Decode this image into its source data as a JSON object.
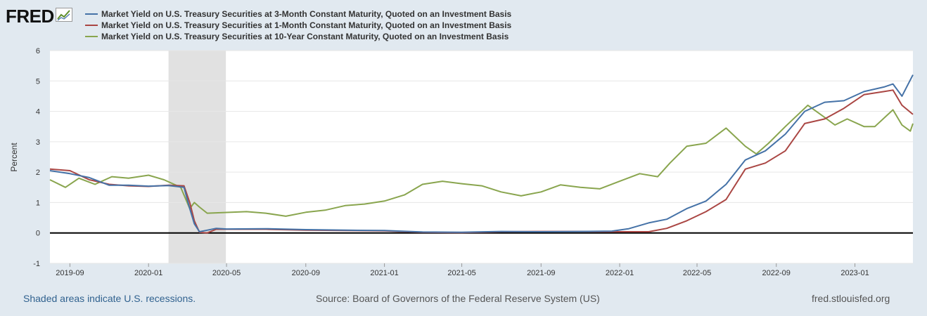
{
  "header": {
    "logo_text": "FRED",
    "logo_icon": "line-chart-icon"
  },
  "colors": {
    "series_3m": "#4572a7",
    "series_1m": "#aa4643",
    "series_10y": "#89a54e",
    "recession_shade": "#e1e1e1",
    "background": "#e1e9f0"
  },
  "footer": {
    "recession_note": "Shaded areas indicate U.S. recessions.",
    "source": "Source: Board of Governors of the Federal Reserve System (US)",
    "site": "fred.stlouisfed.org"
  },
  "chart_data": {
    "type": "line",
    "title": "",
    "xlabel": "",
    "ylabel": "Percent",
    "ylim": [
      -1,
      6
    ],
    "yticks": [
      -1,
      0,
      1,
      2,
      3,
      4,
      5,
      6
    ],
    "xlim": [
      "2019-08-01",
      "2023-04-01"
    ],
    "xticks": [
      "2019-09",
      "2020-01",
      "2020-05",
      "2020-09",
      "2021-01",
      "2021-05",
      "2021-09",
      "2022-01",
      "2022-05",
      "2022-09",
      "2023-01"
    ],
    "grid": true,
    "legend_position": "top",
    "recessions": [
      {
        "start": "2020-02-01",
        "end": "2020-04-30"
      }
    ],
    "series": [
      {
        "name": "Market Yield on U.S. Treasury Securities at 3-Month Constant Maturity, Quoted on an Investment Basis",
        "points": [
          [
            "2019-08-01",
            2.05
          ],
          [
            "2019-09-01",
            1.95
          ],
          [
            "2019-10-01",
            1.82
          ],
          [
            "2019-11-01",
            1.57
          ],
          [
            "2019-12-01",
            1.57
          ],
          [
            "2020-01-01",
            1.54
          ],
          [
            "2020-02-01",
            1.56
          ],
          [
            "2020-02-25",
            1.5
          ],
          [
            "2020-03-05",
            0.8
          ],
          [
            "2020-03-12",
            0.3
          ],
          [
            "2020-03-20",
            0.04
          ],
          [
            "2020-04-01",
            0.09
          ],
          [
            "2020-04-15",
            0.15
          ],
          [
            "2020-05-01",
            0.13
          ],
          [
            "2020-07-01",
            0.14
          ],
          [
            "2020-09-01",
            0.11
          ],
          [
            "2020-11-01",
            0.09
          ],
          [
            "2021-01-01",
            0.08
          ],
          [
            "2021-03-01",
            0.03
          ],
          [
            "2021-05-01",
            0.02
          ],
          [
            "2021-07-01",
            0.05
          ],
          [
            "2021-09-01",
            0.04
          ],
          [
            "2021-11-01",
            0.05
          ],
          [
            "2021-12-20",
            0.06
          ],
          [
            "2022-01-15",
            0.14
          ],
          [
            "2022-02-15",
            0.33
          ],
          [
            "2022-03-15",
            0.45
          ],
          [
            "2022-04-15",
            0.8
          ],
          [
            "2022-05-15",
            1.05
          ],
          [
            "2022-06-15",
            1.6
          ],
          [
            "2022-07-15",
            2.4
          ],
          [
            "2022-08-15",
            2.7
          ],
          [
            "2022-09-15",
            3.25
          ],
          [
            "2022-10-15",
            4.0
          ],
          [
            "2022-11-15",
            4.3
          ],
          [
            "2022-12-15",
            4.35
          ],
          [
            "2023-01-15",
            4.65
          ],
          [
            "2023-02-15",
            4.8
          ],
          [
            "2023-03-01",
            4.9
          ],
          [
            "2023-03-15",
            4.5
          ],
          [
            "2023-04-01",
            5.2
          ]
        ]
      },
      {
        "name": "Market Yield on U.S. Treasury Securities at 1-Month Constant Maturity, Quoted on an Investment Basis",
        "points": [
          [
            "2019-08-01",
            2.1
          ],
          [
            "2019-09-01",
            2.05
          ],
          [
            "2019-10-01",
            1.75
          ],
          [
            "2019-11-01",
            1.6
          ],
          [
            "2019-12-01",
            1.55
          ],
          [
            "2020-01-01",
            1.53
          ],
          [
            "2020-02-01",
            1.57
          ],
          [
            "2020-02-25",
            1.55
          ],
          [
            "2020-03-05",
            1.0
          ],
          [
            "2020-03-12",
            0.4
          ],
          [
            "2020-03-20",
            0.02
          ],
          [
            "2020-04-01",
            0.0
          ],
          [
            "2020-04-15",
            0.12
          ],
          [
            "2020-05-01",
            0.12
          ],
          [
            "2020-07-01",
            0.12
          ],
          [
            "2020-09-01",
            0.09
          ],
          [
            "2020-11-01",
            0.08
          ],
          [
            "2021-01-01",
            0.07
          ],
          [
            "2021-03-01",
            0.02
          ],
          [
            "2021-05-01",
            0.01
          ],
          [
            "2021-07-01",
            0.04
          ],
          [
            "2021-09-01",
            0.05
          ],
          [
            "2021-11-01",
            0.05
          ],
          [
            "2021-12-20",
            0.04
          ],
          [
            "2022-01-15",
            0.04
          ],
          [
            "2022-02-15",
            0.04
          ],
          [
            "2022-03-15",
            0.15
          ],
          [
            "2022-04-15",
            0.4
          ],
          [
            "2022-05-15",
            0.7
          ],
          [
            "2022-06-15",
            1.1
          ],
          [
            "2022-07-15",
            2.1
          ],
          [
            "2022-08-15",
            2.3
          ],
          [
            "2022-09-15",
            2.7
          ],
          [
            "2022-10-15",
            3.6
          ],
          [
            "2022-11-15",
            3.75
          ],
          [
            "2022-12-15",
            4.1
          ],
          [
            "2023-01-15",
            4.55
          ],
          [
            "2023-02-15",
            4.65
          ],
          [
            "2023-03-01",
            4.7
          ],
          [
            "2023-03-15",
            4.2
          ],
          [
            "2023-04-01",
            3.9
          ]
        ]
      },
      {
        "name": "Market Yield on U.S. Treasury Securities at 10-Year Constant Maturity, Quoted on an Investment Basis",
        "points": [
          [
            "2019-08-01",
            1.75
          ],
          [
            "2019-08-25",
            1.5
          ],
          [
            "2019-09-15",
            1.8
          ],
          [
            "2019-10-10",
            1.6
          ],
          [
            "2019-11-05",
            1.85
          ],
          [
            "2019-12-01",
            1.8
          ],
          [
            "2020-01-01",
            1.9
          ],
          [
            "2020-01-25",
            1.75
          ],
          [
            "2020-02-20",
            1.5
          ],
          [
            "2020-03-05",
            0.8
          ],
          [
            "2020-03-12",
            1.0
          ],
          [
            "2020-03-20",
            0.85
          ],
          [
            "2020-04-01",
            0.65
          ],
          [
            "2020-06-01",
            0.7
          ],
          [
            "2020-07-01",
            0.65
          ],
          [
            "2020-08-01",
            0.55
          ],
          [
            "2020-09-01",
            0.68
          ],
          [
            "2020-10-01",
            0.75
          ],
          [
            "2020-11-01",
            0.9
          ],
          [
            "2020-12-01",
            0.95
          ],
          [
            "2021-01-01",
            1.05
          ],
          [
            "2021-02-01",
            1.25
          ],
          [
            "2021-03-01",
            1.6
          ],
          [
            "2021-04-01",
            1.7
          ],
          [
            "2021-05-01",
            1.62
          ],
          [
            "2021-06-01",
            1.55
          ],
          [
            "2021-07-01",
            1.35
          ],
          [
            "2021-08-01",
            1.22
          ],
          [
            "2021-09-01",
            1.35
          ],
          [
            "2021-10-01",
            1.58
          ],
          [
            "2021-11-01",
            1.5
          ],
          [
            "2021-12-01",
            1.45
          ],
          [
            "2022-01-01",
            1.7
          ],
          [
            "2022-02-01",
            1.95
          ],
          [
            "2022-03-01",
            1.85
          ],
          [
            "2022-03-20",
            2.3
          ],
          [
            "2022-04-15",
            2.85
          ],
          [
            "2022-05-15",
            2.95
          ],
          [
            "2022-06-15",
            3.45
          ],
          [
            "2022-07-15",
            2.85
          ],
          [
            "2022-08-01",
            2.6
          ],
          [
            "2022-08-20",
            2.95
          ],
          [
            "2022-09-15",
            3.5
          ],
          [
            "2022-10-20",
            4.2
          ],
          [
            "2022-11-15",
            3.8
          ],
          [
            "2022-12-01",
            3.55
          ],
          [
            "2022-12-20",
            3.75
          ],
          [
            "2023-01-15",
            3.5
          ],
          [
            "2023-02-01",
            3.5
          ],
          [
            "2023-03-01",
            4.05
          ],
          [
            "2023-03-15",
            3.55
          ],
          [
            "2023-03-28",
            3.35
          ],
          [
            "2023-04-01",
            3.6
          ]
        ]
      }
    ]
  }
}
